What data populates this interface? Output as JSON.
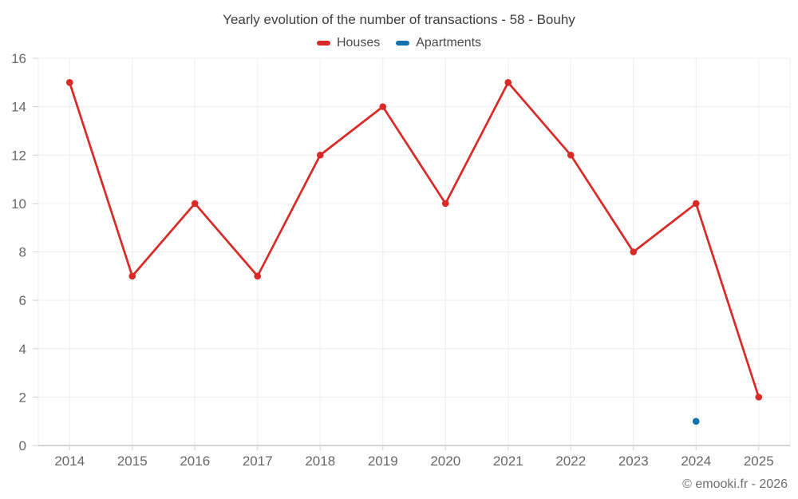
{
  "title": "Yearly evolution of the number of transactions - 58 - Bouhy",
  "footer": {
    "copyright": "© emooki.fr - 2026"
  },
  "colors": {
    "houses": "#da2a27",
    "apartments": "#1172ae",
    "grid": "#ededed",
    "axis": "#c6c6c6",
    "tick": "#d9d9d9",
    "tick_label": "#686868"
  },
  "chart_data": {
    "type": "line",
    "title": "Yearly evolution of the number of transactions - 58 - Bouhy",
    "categories": [
      "2014",
      "2015",
      "2016",
      "2017",
      "2018",
      "2019",
      "2020",
      "2021",
      "2022",
      "2023",
      "2024",
      "2025"
    ],
    "series": [
      {
        "name": "Houses",
        "color": "#da2a27",
        "values": [
          15,
          7,
          10,
          7,
          12,
          14,
          10,
          15,
          12,
          8,
          10,
          2
        ]
      },
      {
        "name": "Apartments",
        "color": "#1172ae",
        "values": [
          null,
          null,
          null,
          null,
          null,
          null,
          null,
          null,
          null,
          null,
          1,
          null
        ]
      }
    ],
    "xlabel": "",
    "ylabel": "",
    "ylim": [
      0,
      16
    ],
    "yticks": [
      0,
      2,
      4,
      6,
      8,
      10,
      12,
      14,
      16
    ],
    "grid": true,
    "legend_position": "top"
  }
}
